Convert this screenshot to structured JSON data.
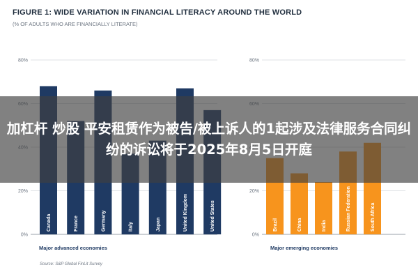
{
  "title": "FIGURE 1: WIDE VARIATION IN FINANCIAL LITERACY AROUND THE WORLD",
  "subtitle": "(% OF ADULTS WHO ARE FINANCIALLY LITERATE)",
  "source": "Source: S&P Global FinLit Survey",
  "overlay_headline": "加杠杆 炒股 平安租赁作为被告/被上诉人的1起涉及法律服务合同纠纷的诉讼将于2025年8月5日开庭",
  "colors": {
    "advanced": "#1f3a63",
    "emerging": "#f7941d",
    "grid": "#d5d8dc",
    "axis": "#9aa1a9"
  },
  "chart_data": [
    {
      "type": "bar",
      "ylim": [
        0,
        80
      ],
      "yticks": [
        "0%",
        "20%",
        "40%",
        "60%",
        "80%"
      ],
      "group_label": "Major advanced economies",
      "categories": [
        "Canada",
        "France",
        "Germany",
        "Italy",
        "Japan",
        "United Kingdom",
        "United States"
      ],
      "values": [
        68,
        52,
        66,
        37,
        43,
        67,
        57
      ]
    },
    {
      "type": "bar",
      "ylim": [
        0,
        80
      ],
      "yticks": [
        "0%",
        "20%",
        "40%",
        "60%",
        "80%"
      ],
      "group_label": "Major emerging economies",
      "categories": [
        "Brazil",
        "China",
        "India",
        "Russian Federation",
        "South Africa"
      ],
      "values": [
        35,
        28,
        24,
        38,
        42
      ]
    }
  ]
}
